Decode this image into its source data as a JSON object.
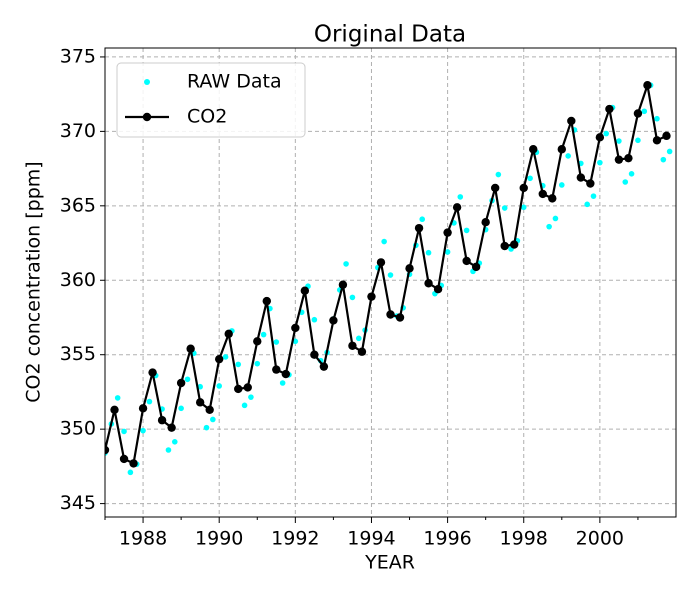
{
  "chart_data": {
    "type": "line",
    "title": "Original Data",
    "x_label": "YEAR",
    "y_label": "CO2 concentration [ppm]",
    "xlim": [
      1987,
      2002
    ],
    "ylim": [
      344.1,
      375.6
    ],
    "xticks": [
      1988,
      1990,
      1992,
      1994,
      1996,
      1998,
      2000
    ],
    "xminorticks": [
      1987,
      1989,
      1991,
      1993,
      1995,
      1997,
      1999,
      2001
    ],
    "yticks": [
      345,
      350,
      355,
      360,
      365,
      370,
      375
    ],
    "grid": true,
    "legend": "upper left",
    "series": [
      {
        "name": "RAW Data",
        "kind": "scatter",
        "color": "#00ffff",
        "x": [
          1987,
          1987.167,
          1987.333,
          1987.5,
          1987.667,
          1987.833,
          1988,
          1988.167,
          1988.333,
          1988.5,
          1988.667,
          1988.833,
          1989,
          1989.167,
          1989.333,
          1989.5,
          1989.667,
          1989.833,
          1990,
          1990.167,
          1990.333,
          1990.5,
          1990.667,
          1990.833,
          1991,
          1991.167,
          1991.333,
          1991.5,
          1991.667,
          1991.833,
          1992,
          1992.167,
          1992.333,
          1992.5,
          1992.667,
          1992.833,
          1993,
          1993.167,
          1993.333,
          1993.5,
          1993.667,
          1993.833,
          1994,
          1994.167,
          1994.333,
          1994.5,
          1994.667,
          1994.833,
          1995,
          1995.167,
          1995.333,
          1995.5,
          1995.667,
          1995.833,
          1996,
          1996.167,
          1996.333,
          1996.5,
          1996.667,
          1996.833,
          1997,
          1997.167,
          1997.333,
          1997.5,
          1997.667,
          1997.833,
          1998,
          1998.167,
          1998.333,
          1998.5,
          1998.667,
          1998.833,
          1999,
          1999.167,
          1999.333,
          1999.5,
          1999.667,
          1999.833,
          2000,
          2000.167,
          2000.333,
          2000.5,
          2000.667,
          2000.833,
          2001,
          2001.167,
          2001.333,
          2001.5,
          2001.667,
          2001.833
        ],
        "values": [
          348.4,
          350.35,
          352.1,
          349.85,
          347.1,
          347.65,
          349.9,
          351.85,
          353.6,
          351.35,
          348.6,
          349.15,
          351.4,
          353.35,
          355.1,
          352.85,
          350.1,
          350.65,
          352.9,
          354.85,
          356.6,
          354.35,
          351.6,
          352.15,
          354.4,
          356.35,
          358.1,
          355.85,
          353.1,
          353.65,
          355.9,
          357.85,
          359.6,
          357.35,
          354.6,
          355.15,
          357.4,
          359.35,
          361.1,
          358.85,
          356.1,
          356.65,
          358.9,
          360.85,
          362.6,
          360.35,
          357.6,
          358.15,
          360.4,
          362.35,
          364.1,
          361.85,
          359.1,
          359.65,
          361.9,
          363.85,
          365.6,
          363.35,
          360.6,
          361.15,
          363.4,
          365.35,
          367.1,
          364.85,
          362.1,
          362.65,
          364.9,
          366.85,
          368.6,
          366.35,
          363.6,
          364.15,
          366.4,
          368.35,
          370.1,
          367.85,
          365.1,
          365.65,
          367.9,
          369.85,
          371.6,
          369.35,
          366.6,
          367.15,
          369.4,
          371.35,
          373.1,
          370.85,
          368.1,
          368.65
        ]
      },
      {
        "name": "CO2",
        "kind": "line",
        "color": "#000000",
        "x": [
          1987,
          1987.25,
          1987.5,
          1987.75,
          1988,
          1988.25,
          1988.5,
          1988.75,
          1989,
          1989.25,
          1989.5,
          1989.75,
          1990,
          1990.25,
          1990.5,
          1990.75,
          1991,
          1991.25,
          1991.5,
          1991.75,
          1992,
          1992.25,
          1992.5,
          1992.75,
          1993,
          1993.25,
          1993.5,
          1993.75,
          1994,
          1994.25,
          1994.5,
          1994.75,
          1995,
          1995.25,
          1995.5,
          1995.75,
          1996,
          1996.25,
          1996.5,
          1996.75,
          1997,
          1997.25,
          1997.5,
          1997.75,
          1998,
          1998.25,
          1998.5,
          1998.75,
          1999,
          1999.25,
          1999.5,
          1999.75,
          2000,
          2000.25,
          2000.5,
          2000.75,
          2001,
          2001.25,
          2001.5,
          2001.75
        ],
        "values": [
          348.6,
          351.3,
          348.0,
          347.7,
          351.4,
          353.8,
          350.6,
          350.1,
          353.1,
          355.4,
          351.8,
          351.3,
          354.7,
          356.4,
          352.7,
          352.8,
          355.9,
          358.6,
          354.0,
          353.7,
          356.8,
          359.3,
          355.0,
          354.2,
          357.3,
          359.7,
          355.6,
          355.2,
          358.9,
          361.2,
          357.7,
          357.5,
          360.8,
          363.5,
          359.8,
          359.4,
          363.2,
          364.9,
          361.3,
          360.9,
          363.9,
          366.2,
          362.3,
          362.4,
          366.2,
          368.8,
          365.8,
          365.5,
          368.8,
          370.7,
          366.9,
          366.5,
          369.6,
          371.5,
          368.1,
          368.2,
          371.2,
          373.1,
          369.4,
          369.7
        ]
      }
    ]
  }
}
